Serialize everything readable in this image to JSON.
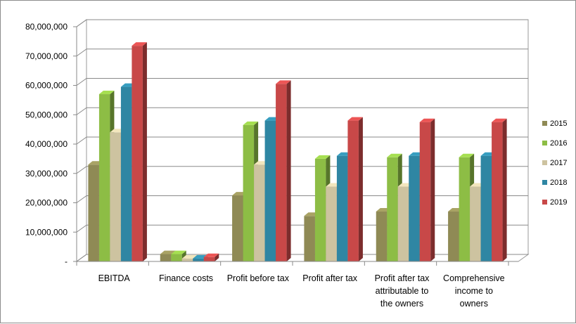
{
  "chart_data": {
    "type": "bar",
    "categories": [
      [
        "EBITDA"
      ],
      [
        "Finance costs"
      ],
      [
        "Profit before tax"
      ],
      [
        "Profit after tax"
      ],
      [
        "Profit after tax",
        "attributable to",
        "the owners"
      ],
      [
        "Comprehensive",
        "income to",
        "owners"
      ]
    ],
    "series": [
      {
        "name": "2015",
        "color": "#8f8a55",
        "values": [
          33000000,
          2500000,
          22500000,
          15500000,
          17000000,
          17000000
        ]
      },
      {
        "name": "2016",
        "color": "#8dbd45",
        "values": [
          57000000,
          2500000,
          46500000,
          35000000,
          35500000,
          35500000
        ]
      },
      {
        "name": "2017",
        "color": "#cdc3a0",
        "values": [
          44000000,
          1000000,
          33000000,
          25500000,
          25500000,
          25500000
        ]
      },
      {
        "name": "2018",
        "color": "#2f86a3",
        "values": [
          59500000,
          1000000,
          48000000,
          36000000,
          36000000,
          36000000
        ]
      },
      {
        "name": "2019",
        "color": "#c84848",
        "values": [
          73500000,
          1500000,
          60500000,
          48000000,
          47500000,
          47500000
        ]
      }
    ],
    "ylim": [
      0,
      80000000
    ],
    "yticks": [
      0,
      10000000,
      20000000,
      30000000,
      40000000,
      50000000,
      60000000,
      70000000,
      80000000
    ],
    "ytick_labels": [
      "-",
      "10,000,000",
      "20,000,000",
      "30,000,000",
      "40,000,000",
      "50,000,000",
      "60,000,000",
      "70,000,000",
      "80,000,000"
    ],
    "legend_position": "right",
    "grid": true,
    "style": "3d-clustered-column"
  }
}
